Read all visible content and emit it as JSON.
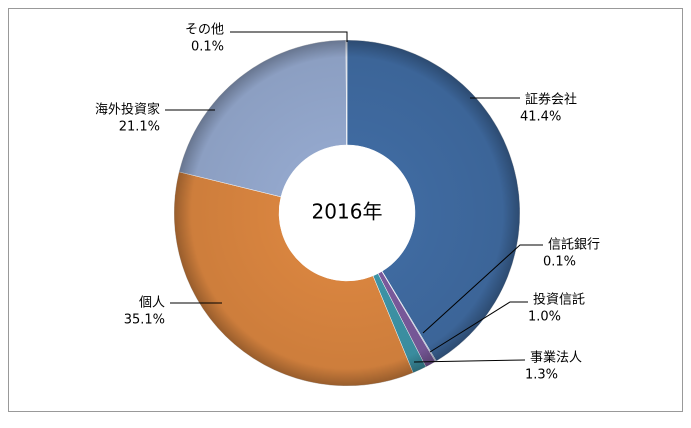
{
  "chart_data": {
    "type": "pie",
    "donut": true,
    "center_label": "2016年",
    "categories": [
      "証券会社",
      "信託銀行",
      "投資信託",
      "事業法人",
      "個人",
      "海外投資家",
      "その他"
    ],
    "values": [
      41.4,
      0.1,
      1.0,
      1.3,
      35.1,
      21.1,
      0.1
    ],
    "value_labels": [
      "41.4%",
      "0.1%",
      "1.0%",
      "1.3%",
      "35.1%",
      "21.1%",
      "0.1%"
    ],
    "colors": [
      "#3f6aa0",
      "#9fb3d4",
      "#7a5a9c",
      "#3d93a6",
      "#d8843f",
      "#93a7cc",
      "#c8d2e6"
    ]
  }
}
